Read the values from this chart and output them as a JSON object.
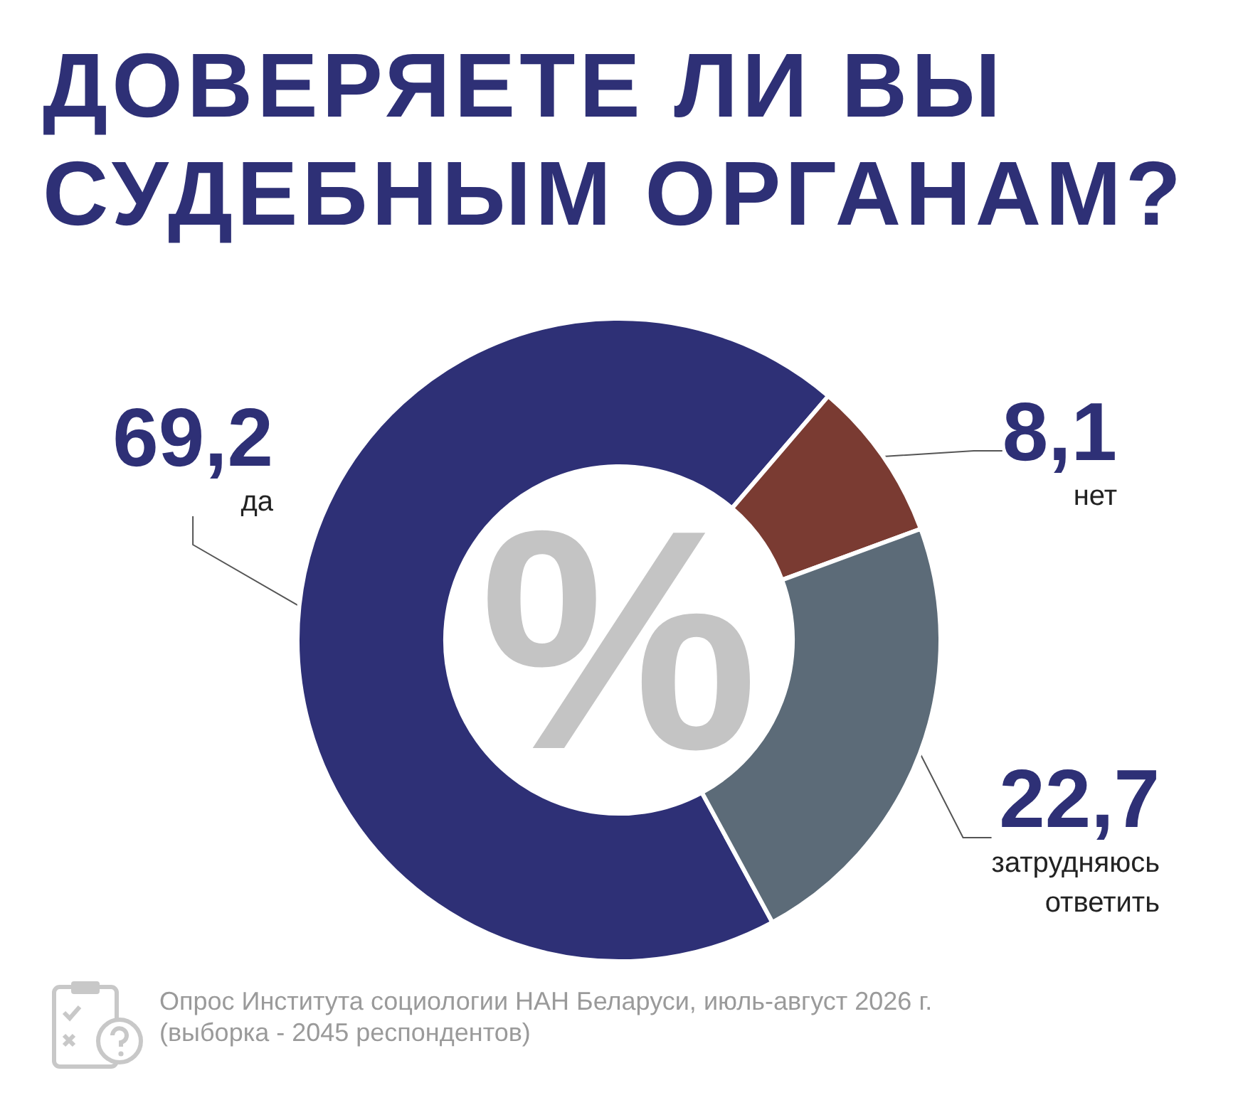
{
  "chart_data": {
    "type": "donut",
    "title": "ДОВЕРЯЕТЕ ЛИ ВЫ СУДЕБНЫМ ОРГАНАМ?",
    "categories": [
      "да",
      "нет",
      "затрудняюсь ответить"
    ],
    "values": [
      69.2,
      8.1,
      22.7
    ],
    "colors": [
      "#2e3076",
      "#7a3b32",
      "#5c6b78"
    ],
    "value_labels": [
      "69,2",
      "8,1",
      "22,7"
    ],
    "legend": false,
    "annotations": [
      "%",
      "Опрос Института социологии НАН Беларуси, июль-август 2026 г.",
      "(выборка - 2045 респондентов)"
    ]
  }
}
